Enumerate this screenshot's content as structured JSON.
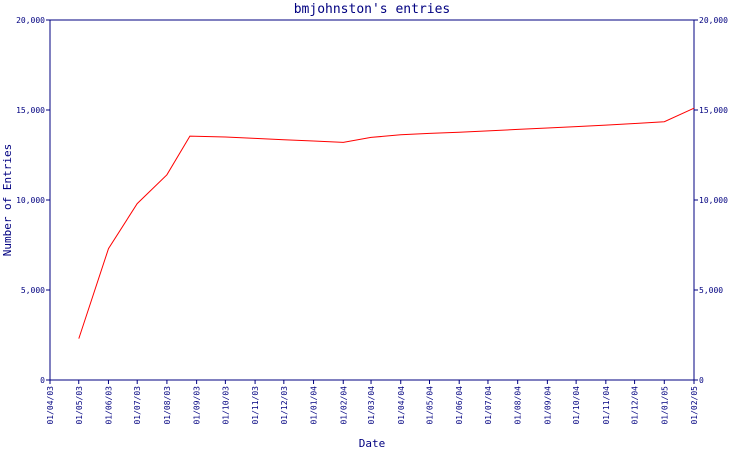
{
  "chart_data": {
    "type": "line",
    "title": "bmjohnston's entries",
    "xlabel": "Date",
    "ylabel": "Number of Entries",
    "ylim": [
      0,
      20000
    ],
    "grid": false,
    "y_ticks": [
      0,
      5000,
      10000,
      15000,
      20000
    ],
    "y_tick_labels": [
      "0",
      "5,000",
      "10,000",
      "15,000",
      "20,000"
    ],
    "x_tick_labels": [
      "01/04/03",
      "01/05/03",
      "01/06/03",
      "01/07/03",
      "01/08/03",
      "01/09/03",
      "01/10/03",
      "01/11/03",
      "01/12/03",
      "01/01/04",
      "01/02/04",
      "01/03/04",
      "01/04/04",
      "01/05/04",
      "01/06/04",
      "01/07/04",
      "01/08/04",
      "01/09/04",
      "01/10/04",
      "01/11/04",
      "01/12/04",
      "01/01/05",
      "01/02/05"
    ],
    "series": [
      {
        "color": "#ff0000",
        "x": [
          "2003-05-01",
          "2003-06-01",
          "2003-07-01",
          "2003-08-01",
          "2003-08-25",
          "2003-10-01",
          "2003-11-01",
          "2003-12-01",
          "2004-01-01",
          "2004-02-01",
          "2004-03-01",
          "2004-04-01",
          "2004-05-01",
          "2004-06-01",
          "2004-07-01",
          "2004-08-01",
          "2004-09-01",
          "2004-10-01",
          "2004-11-01",
          "2004-12-01",
          "2005-01-01",
          "2005-02-01"
        ],
        "values": [
          2300,
          7300,
          9800,
          11400,
          13550,
          13500,
          13420,
          13350,
          13280,
          13200,
          13480,
          13620,
          13700,
          13760,
          13840,
          13920,
          14000,
          14080,
          14160,
          14250,
          14350,
          15100
        ]
      }
    ]
  }
}
